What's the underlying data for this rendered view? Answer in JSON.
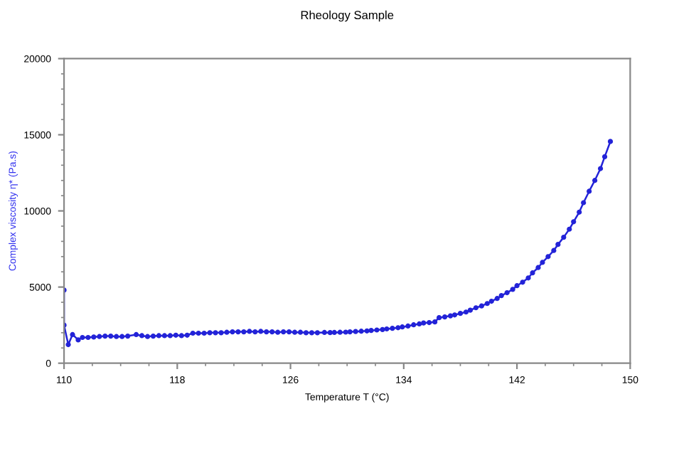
{
  "chart_data": {
    "type": "line",
    "title": "Rheology Sample",
    "xlabel": "Temperature T (°C)",
    "ylabel": "Complex viscosity η* (Pa.s)",
    "xlim": [
      110,
      150
    ],
    "xticks": [
      110,
      118,
      126,
      134,
      142,
      150
    ],
    "ylim": [
      0,
      20000
    ],
    "yticks": [
      0,
      5000,
      10000,
      15000,
      20000
    ],
    "grid": false,
    "legend": false,
    "marker": "circle",
    "line_style": "solid",
    "series": [
      {
        "color": "#2323d8",
        "x": [
          110.0,
          110.0,
          110.3,
          110.6,
          111.0,
          111.3,
          111.7,
          112.1,
          112.5,
          112.9,
          113.3,
          113.7,
          114.1,
          114.5,
          115.1,
          115.5,
          115.9,
          116.3,
          116.7,
          117.1,
          117.5,
          117.9,
          118.3,
          118.7,
          119.1,
          119.5,
          119.9,
          120.3,
          120.7,
          121.1,
          121.5,
          121.9,
          122.3,
          122.7,
          123.1,
          123.5,
          123.9,
          124.3,
          124.7,
          125.1,
          125.5,
          125.9,
          126.3,
          126.7,
          127.1,
          127.5,
          127.9,
          128.4,
          128.8,
          129.1,
          129.5,
          129.9,
          130.2,
          130.6,
          131.0,
          131.4,
          131.7,
          132.1,
          132.5,
          132.8,
          133.2,
          133.6,
          133.9,
          134.3,
          134.7,
          135.1,
          135.4,
          135.8,
          136.2,
          136.5,
          136.9,
          137.3,
          137.6,
          138.0,
          138.4,
          138.7,
          139.1,
          139.5,
          139.9,
          140.2,
          140.6,
          140.9,
          141.3,
          141.7,
          142.0,
          142.4,
          142.8,
          143.1,
          143.5,
          143.8,
          144.2,
          144.6,
          144.9,
          145.3,
          145.7,
          146.0,
          146.4,
          146.7,
          147.1,
          147.5,
          147.9,
          148.2,
          148.6
        ],
        "values": [
          4800,
          2500,
          1220,
          1880,
          1530,
          1690,
          1690,
          1720,
          1750,
          1780,
          1780,
          1750,
          1750,
          1780,
          1880,
          1810,
          1750,
          1780,
          1810,
          1810,
          1810,
          1840,
          1810,
          1840,
          1970,
          1970,
          1970,
          2000,
          2000,
          2000,
          2030,
          2060,
          2060,
          2060,
          2090,
          2060,
          2090,
          2060,
          2060,
          2030,
          2060,
          2060,
          2030,
          2030,
          2000,
          2000,
          2000,
          2020,
          2010,
          2020,
          2030,
          2040,
          2060,
          2080,
          2100,
          2120,
          2150,
          2180,
          2210,
          2250,
          2290,
          2330,
          2380,
          2440,
          2520,
          2580,
          2640,
          2670,
          2710,
          2990,
          3040,
          3110,
          3170,
          3270,
          3360,
          3480,
          3640,
          3760,
          3920,
          4070,
          4250,
          4440,
          4630,
          4850,
          5090,
          5320,
          5600,
          5930,
          6280,
          6620,
          7000,
          7400,
          7800,
          8270,
          8800,
          9290,
          9920,
          10540,
          11290,
          12000,
          12780,
          13560,
          14560
        ]
      }
    ]
  }
}
